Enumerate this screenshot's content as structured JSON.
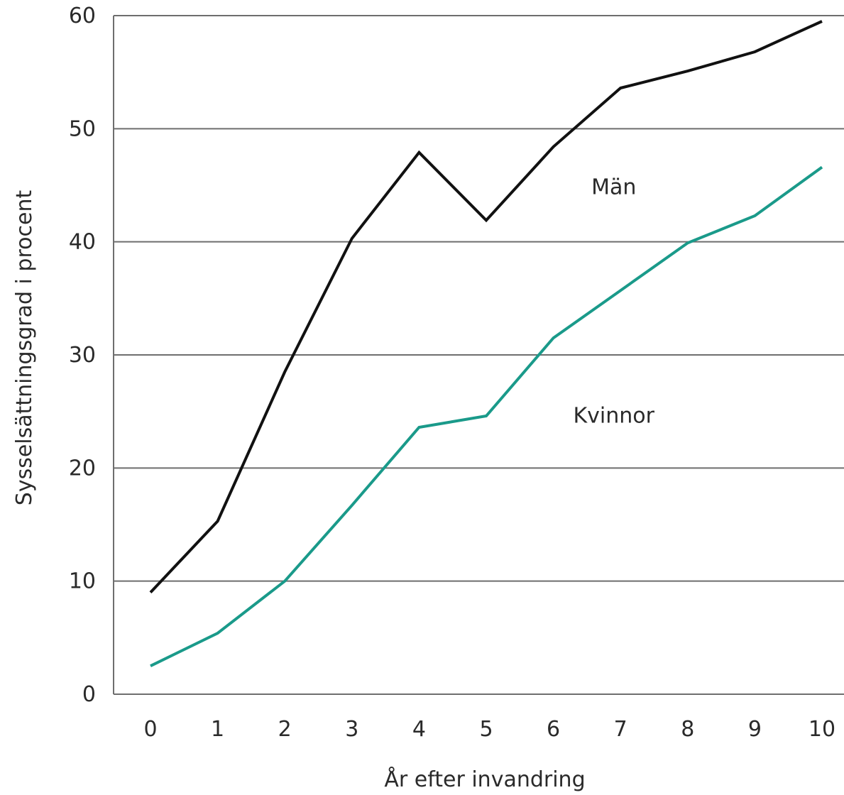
{
  "chart_data": {
    "type": "line",
    "title": "",
    "xlabel": "År efter invandring",
    "ylabel": "Sysselsättningsgrad i procent",
    "x": [
      0,
      1,
      2,
      3,
      4,
      5,
      6,
      7,
      8,
      9,
      10
    ],
    "xlim": [
      0,
      10
    ],
    "ylim": [
      0,
      60
    ],
    "yticks": [
      0,
      10,
      20,
      30,
      40,
      50,
      60
    ],
    "xticks": [
      0,
      1,
      2,
      3,
      4,
      5,
      6,
      7,
      8,
      9,
      10
    ],
    "grid": "horizontal",
    "legend": "inline labels",
    "series": [
      {
        "name": "Män",
        "color": "#111111",
        "values": [
          9.0,
          15.3,
          28.5,
          40.3,
          47.9,
          41.9,
          48.4,
          53.6,
          55.1,
          56.8,
          59.5
        ]
      },
      {
        "name": "Kvinnor",
        "color": "#1a9a8a",
        "values": [
          2.5,
          5.4,
          10.0,
          16.7,
          23.6,
          24.6,
          31.5,
          35.7,
          39.9,
          42.3,
          46.6
        ]
      }
    ]
  }
}
